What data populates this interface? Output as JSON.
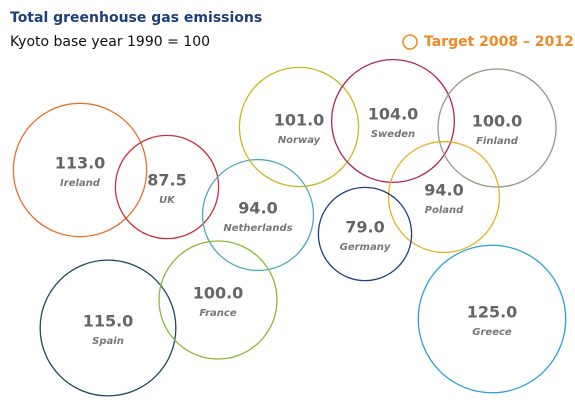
{
  "chart_data": {
    "type": "bubble",
    "title": "Total greenhouse gas emissions",
    "subtitle": "Kyoto base year 1990 = 100",
    "legend_label": "Target 2008 – 2012",
    "legend_color": "#f08a24",
    "categories": [
      "Ireland",
      "UK",
      "Netherlands",
      "Norway",
      "Sweden",
      "Finland",
      "Poland",
      "Germany",
      "Spain",
      "France",
      "Greece"
    ],
    "values": [
      113,
      87.5,
      94,
      101,
      104,
      100,
      94,
      79,
      115,
      100,
      125
    ],
    "value_labels": [
      "113.0",
      "87.5",
      "94.0",
      "101.0",
      "104.0",
      "100.0",
      "94.0",
      "79.0",
      "115.0",
      "100.0",
      "125.0"
    ],
    "colors": [
      "#e8722a",
      "#c8323a",
      "#4aabbb",
      "#c9b820",
      "#b0245c",
      "#9a9488",
      "#e8b020",
      "#1f3f7a",
      "#1a4a5e",
      "#8ab83a",
      "#2aa0d8"
    ]
  }
}
